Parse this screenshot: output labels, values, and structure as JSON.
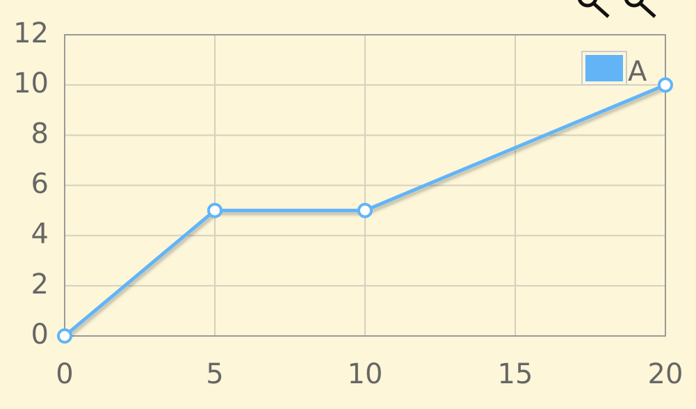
{
  "chart_data": {
    "type": "line",
    "x": [
      0,
      5,
      10,
      20
    ],
    "series": [
      {
        "name": "A",
        "color": "#62b4f7",
        "values": [
          0,
          5,
          5,
          10
        ]
      }
    ],
    "xlim": [
      0,
      20
    ],
    "xticks": [
      0,
      5,
      10,
      15,
      20
    ],
    "ylim": [
      0,
      12
    ],
    "yticks": [
      0,
      2,
      4,
      6,
      8,
      10,
      12
    ],
    "grid": true,
    "legend": "ne"
  }
}
